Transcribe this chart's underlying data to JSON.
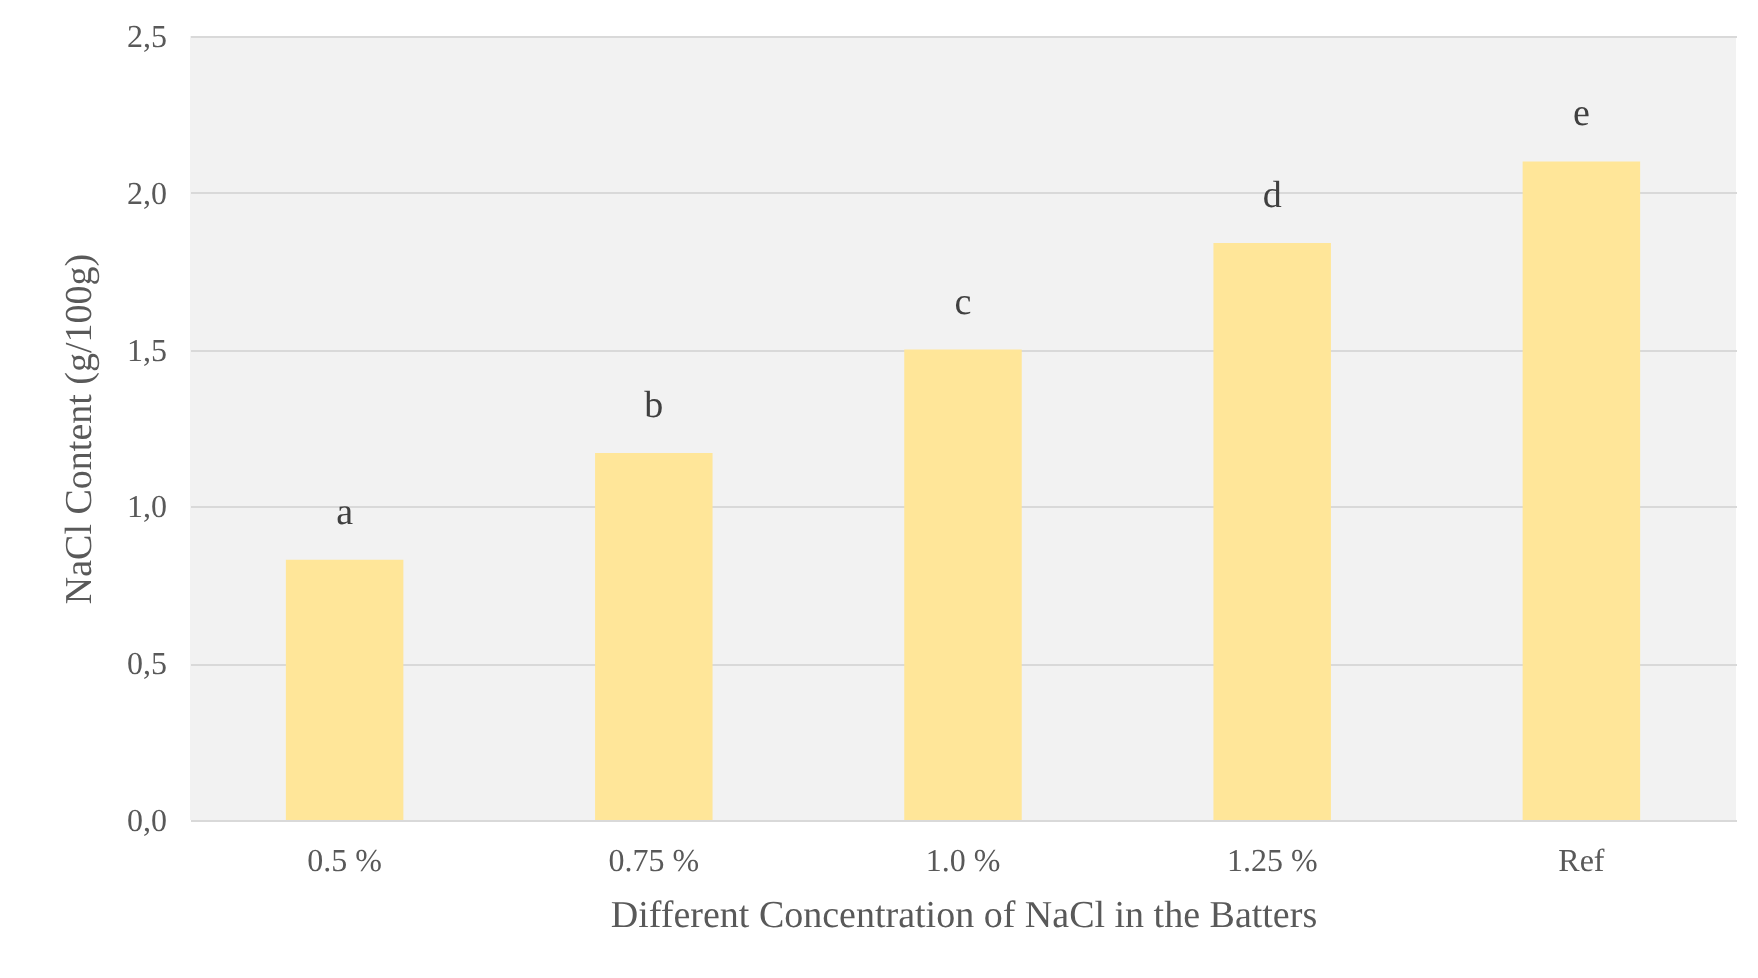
{
  "chart_data": {
    "type": "bar",
    "xlabel": "Different Concentration of NaCl in the Batters",
    "ylabel": "NaCl Content (g/100g)",
    "categories": [
      "0.5 %",
      "0.75 %",
      "1.0 %",
      "1.25 %",
      "Ref"
    ],
    "values": [
      0.83,
      1.17,
      1.5,
      1.84,
      2.1
    ],
    "color": "#ffe699",
    "ylim": [
      0,
      2.5
    ],
    "yticks": [
      {
        "value": 0,
        "label": "0,0"
      },
      {
        "value": 0.5,
        "label": "0,5"
      },
      {
        "value": 1,
        "label": "1,0"
      },
      {
        "value": 1.5,
        "label": "1,5"
      },
      {
        "value": 2,
        "label": "2,0"
      },
      {
        "value": 2.5,
        "label": "2,5"
      }
    ],
    "grid": "y",
    "annotations": [
      "a",
      "b",
      "c",
      "d",
      "e"
    ]
  }
}
